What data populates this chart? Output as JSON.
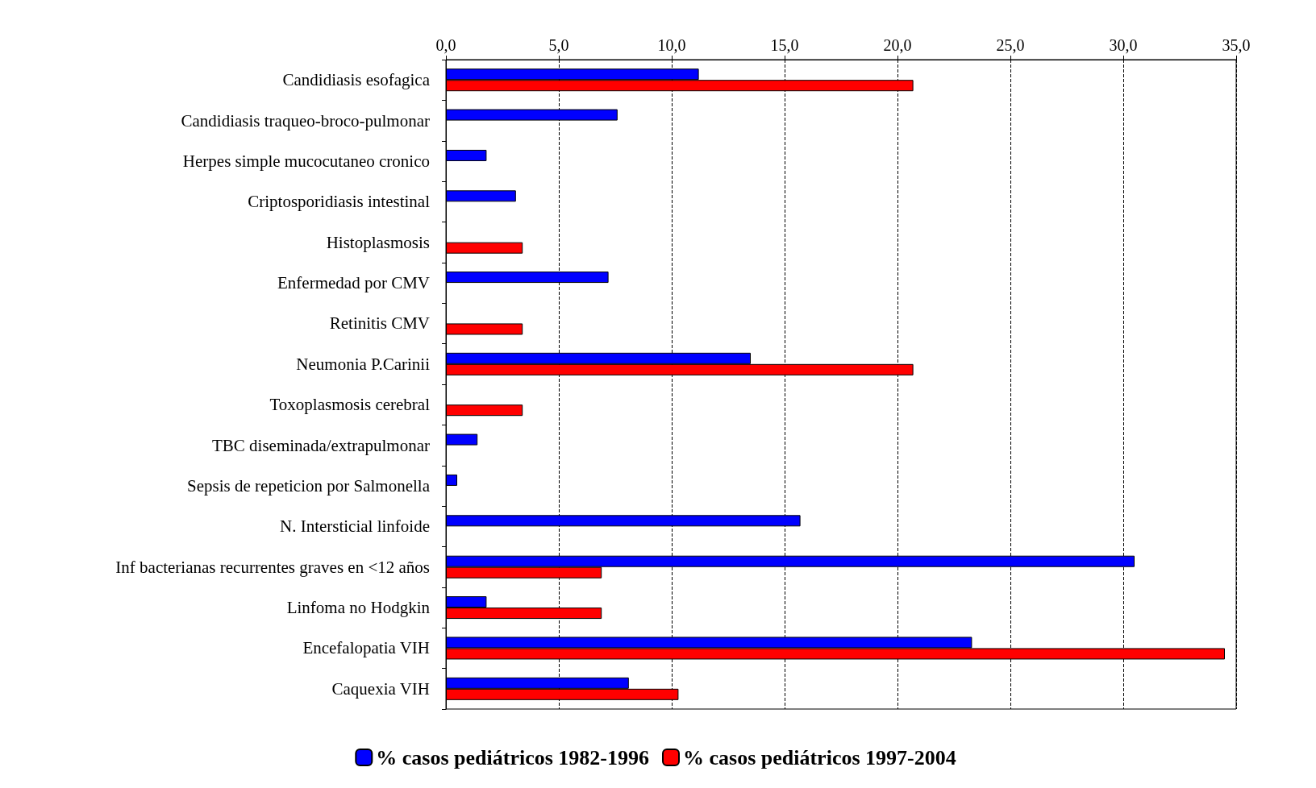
{
  "chart_data": {
    "type": "bar",
    "orientation": "horizontal",
    "categories": [
      "Candidiasis esofagica",
      "Candidiasis traqueo-broco-pulmonar",
      "Herpes simple mucocutaneo cronico",
      "Criptosporidiasis intestinal",
      "Histoplasmosis",
      "Enfermedad por CMV",
      "Retinitis CMV",
      "Neumonia P.Carinii",
      "Toxoplasmosis cerebral",
      "TBC diseminada/extrapulmonar",
      "Sepsis de repeticion por Salmonella",
      "N. Intersticial linfoide",
      "Inf bacterianas recurrentes graves en <12 años",
      "Linfoma no Hodgkin",
      "Encefalopatia VIH",
      "Caquexia VIH"
    ],
    "series": [
      {
        "name": "% casos pediátricos 1982-1996",
        "color": "#0000ff",
        "values": [
          11.2,
          7.6,
          1.8,
          3.1,
          null,
          7.2,
          null,
          13.5,
          null,
          1.4,
          0.5,
          15.7,
          30.5,
          1.8,
          23.3,
          8.1
        ]
      },
      {
        "name": "% casos pediátricos 1997-2004",
        "color": "#ff0000",
        "values": [
          20.7,
          null,
          null,
          null,
          3.4,
          null,
          3.4,
          20.7,
          3.4,
          null,
          null,
          null,
          6.9,
          6.9,
          34.5,
          10.3
        ]
      }
    ],
    "xlim": [
      0,
      35
    ],
    "xticks": [
      {
        "value": 0,
        "label": "0,0"
      },
      {
        "value": 5,
        "label": "5,0"
      },
      {
        "value": 10,
        "label": "10,0"
      },
      {
        "value": 15,
        "label": "15,0"
      },
      {
        "value": 20,
        "label": "20,0"
      },
      {
        "value": 25,
        "label": "25,0"
      },
      {
        "value": 30,
        "label": "30,0"
      },
      {
        "value": 35,
        "label": "35,0"
      }
    ],
    "grid": "x",
    "legend": "bottom"
  }
}
